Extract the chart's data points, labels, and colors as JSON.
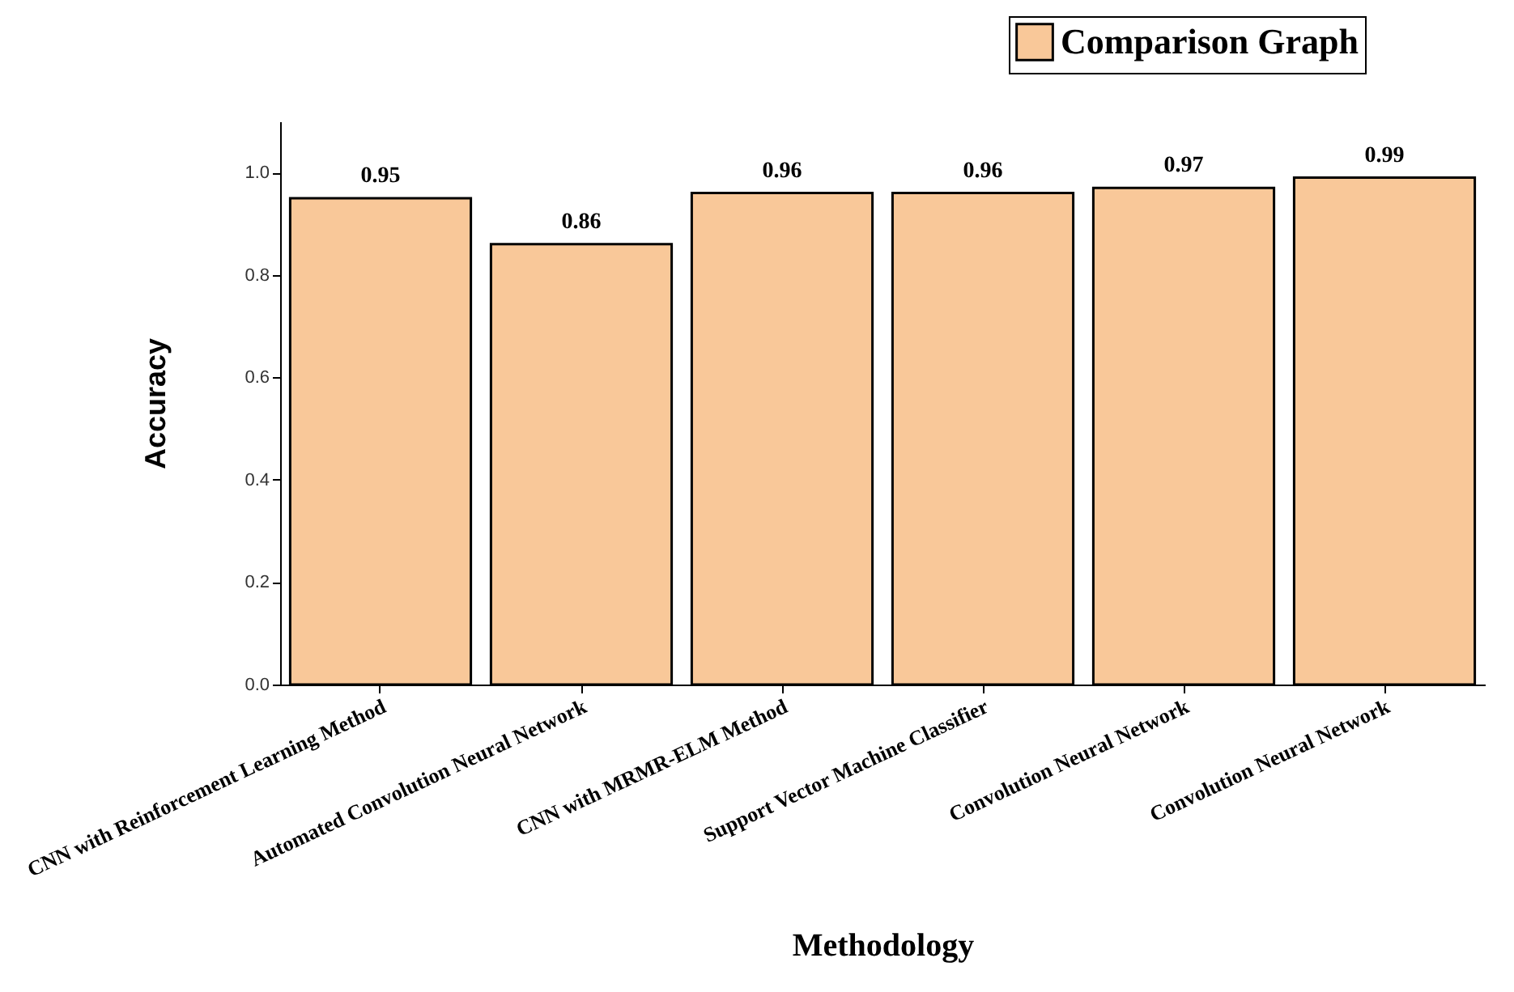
{
  "chart_data": {
    "type": "bar",
    "xlabel": "Methodology",
    "ylabel": "Accuracy",
    "categories": [
      "CNN with Reinforcement Learning Method",
      "Automated Convolution Neural Network",
      "CNN with MRMR-ELM Method",
      "Support Vector Machine Classifier",
      "Convolution Neural Network",
      "Convolution Neural Network"
    ],
    "series": [
      {
        "name": "Comparison Graph",
        "color": "#f9c899",
        "values": [
          0.95,
          0.86,
          0.96,
          0.96,
          0.97,
          0.99
        ]
      }
    ],
    "data_labels": true,
    "ylim": [
      0,
      1.1
    ],
    "yticks": [
      {
        "value": 0,
        "label": "0.0"
      },
      {
        "value": 0.2,
        "label": "0.2"
      },
      {
        "value": 0.4,
        "label": "0.4"
      },
      {
        "value": 0.6,
        "label": "0.6"
      },
      {
        "value": 0.8,
        "label": "0.8"
      },
      {
        "value": 1,
        "label": "1.0"
      }
    ],
    "grid": false,
    "legend": "top right"
  }
}
